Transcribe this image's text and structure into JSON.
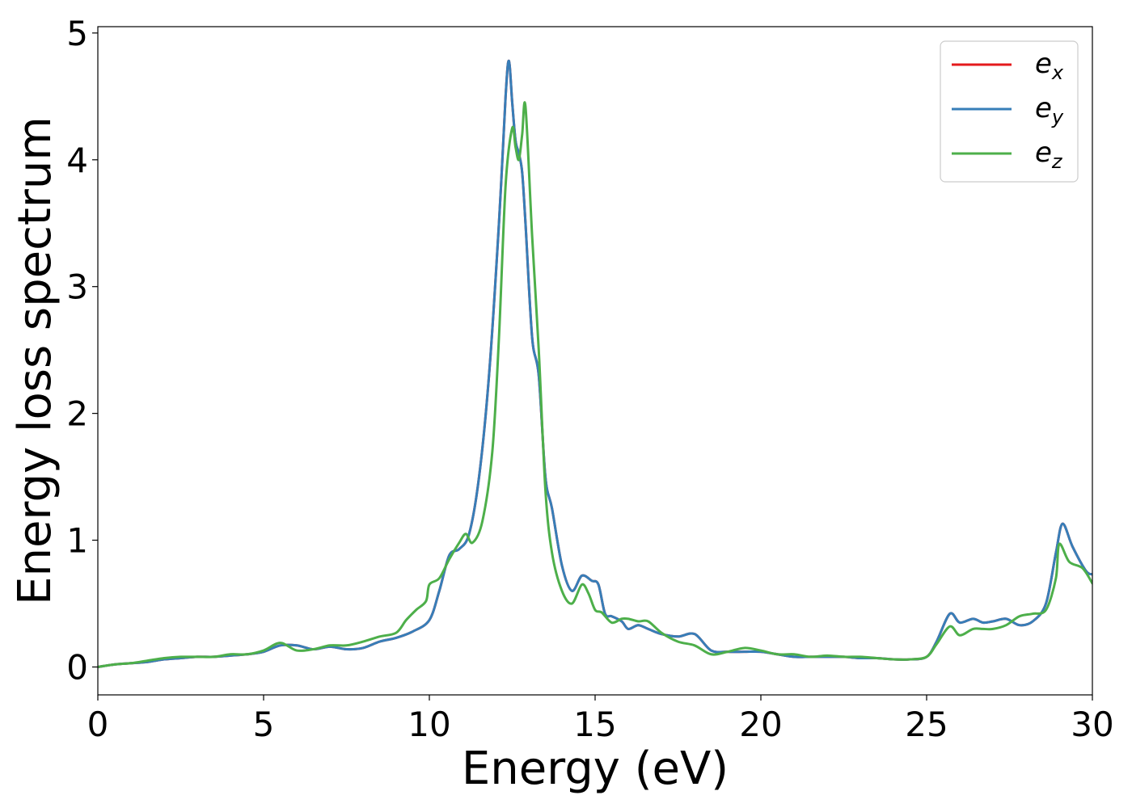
{
  "chart_data": {
    "type": "line",
    "title": "",
    "xlabel": "Energy (eV)",
    "ylabel": "Energy loss spectrum",
    "xlim": [
      0,
      30
    ],
    "ylim": [
      -0.22,
      5.05
    ],
    "xticks": [
      0,
      5,
      10,
      15,
      20,
      25,
      30
    ],
    "yticks": [
      0,
      1,
      2,
      3,
      4,
      5
    ],
    "grid": false,
    "legend_position": "top-right",
    "series": [
      {
        "name": "e_x",
        "legend_base": "e",
        "legend_sub": "x",
        "color": "#e41a1c",
        "x": [
          0,
          0.5,
          1,
          1.5,
          2,
          2.5,
          3,
          3.5,
          4,
          4.5,
          5,
          5.5,
          6,
          6.5,
          7,
          7.5,
          8,
          8.5,
          9,
          9.5,
          10,
          10.3,
          10.6,
          10.9,
          11.2,
          11.5,
          11.8,
          12.1,
          12.3,
          12.4,
          12.5,
          12.6,
          12.7,
          12.8,
          12.9,
          13.1,
          13.3,
          13.5,
          13.7,
          14,
          14.3,
          14.6,
          14.9,
          15.1,
          15.3,
          15.5,
          15.8,
          16,
          16.3,
          16.6,
          17,
          17.5,
          18,
          18.5,
          19,
          19.5,
          20,
          20.5,
          21,
          21.5,
          22,
          22.5,
          23,
          23.5,
          24,
          24.5,
          25,
          25.3,
          25.7,
          26,
          26.4,
          26.7,
          27,
          27.4,
          27.8,
          28.2,
          28.6,
          28.9,
          29.1,
          29.4,
          29.8,
          30
        ],
        "y": [
          0,
          0.02,
          0.03,
          0.04,
          0.06,
          0.07,
          0.08,
          0.08,
          0.09,
          0.1,
          0.12,
          0.17,
          0.17,
          0.14,
          0.16,
          0.14,
          0.15,
          0.2,
          0.23,
          0.28,
          0.37,
          0.6,
          0.88,
          0.93,
          1.05,
          1.5,
          2.3,
          3.5,
          4.5,
          4.78,
          4.45,
          4.15,
          4.05,
          3.9,
          3.5,
          2.6,
          2.3,
          1.5,
          1.25,
          0.8,
          0.6,
          0.72,
          0.68,
          0.65,
          0.42,
          0.4,
          0.36,
          0.3,
          0.33,
          0.3,
          0.26,
          0.24,
          0.26,
          0.13,
          0.12,
          0.12,
          0.12,
          0.1,
          0.08,
          0.08,
          0.08,
          0.08,
          0.07,
          0.07,
          0.06,
          0.06,
          0.08,
          0.2,
          0.42,
          0.35,
          0.38,
          0.35,
          0.36,
          0.38,
          0.33,
          0.36,
          0.5,
          0.9,
          1.13,
          0.95,
          0.76,
          0.73
        ]
      },
      {
        "name": "e_y",
        "legend_base": "e",
        "legend_sub": "y",
        "color": "#377eb8",
        "x": [
          0,
          0.5,
          1,
          1.5,
          2,
          2.5,
          3,
          3.5,
          4,
          4.5,
          5,
          5.5,
          6,
          6.5,
          7,
          7.5,
          8,
          8.5,
          9,
          9.5,
          10,
          10.3,
          10.6,
          10.9,
          11.2,
          11.5,
          11.8,
          12.1,
          12.3,
          12.4,
          12.5,
          12.6,
          12.7,
          12.8,
          12.9,
          13.1,
          13.3,
          13.5,
          13.7,
          14,
          14.3,
          14.6,
          14.9,
          15.1,
          15.3,
          15.5,
          15.8,
          16,
          16.3,
          16.6,
          17,
          17.5,
          18,
          18.5,
          19,
          19.5,
          20,
          20.5,
          21,
          21.5,
          22,
          22.5,
          23,
          23.5,
          24,
          24.5,
          25,
          25.3,
          25.7,
          26,
          26.4,
          26.7,
          27,
          27.4,
          27.8,
          28.2,
          28.6,
          28.9,
          29.1,
          29.4,
          29.8,
          30
        ],
        "y": [
          0,
          0.02,
          0.03,
          0.04,
          0.06,
          0.07,
          0.08,
          0.08,
          0.09,
          0.1,
          0.12,
          0.17,
          0.17,
          0.14,
          0.16,
          0.14,
          0.15,
          0.2,
          0.23,
          0.28,
          0.37,
          0.6,
          0.88,
          0.93,
          1.05,
          1.5,
          2.3,
          3.5,
          4.5,
          4.78,
          4.45,
          4.15,
          4.05,
          3.9,
          3.5,
          2.6,
          2.3,
          1.5,
          1.25,
          0.8,
          0.6,
          0.72,
          0.68,
          0.65,
          0.42,
          0.4,
          0.36,
          0.3,
          0.33,
          0.3,
          0.26,
          0.24,
          0.26,
          0.13,
          0.12,
          0.12,
          0.12,
          0.1,
          0.08,
          0.08,
          0.08,
          0.08,
          0.07,
          0.07,
          0.06,
          0.06,
          0.08,
          0.2,
          0.42,
          0.35,
          0.38,
          0.35,
          0.36,
          0.38,
          0.33,
          0.36,
          0.5,
          0.9,
          1.13,
          0.95,
          0.76,
          0.73
        ]
      },
      {
        "name": "e_z",
        "legend_base": "e",
        "legend_sub": "z",
        "color": "#4daf4a",
        "x": [
          0,
          0.5,
          1,
          1.5,
          2,
          2.5,
          3,
          3.5,
          4,
          4.5,
          5,
          5.5,
          6,
          6.5,
          7,
          7.5,
          8,
          8.5,
          9,
          9.3,
          9.6,
          9.9,
          10,
          10.3,
          10.6,
          10.9,
          11.1,
          11.3,
          11.6,
          11.9,
          12.1,
          12.3,
          12.5,
          12.6,
          12.7,
          12.8,
          12.9,
          13.1,
          13.3,
          13.5,
          13.7,
          14,
          14.3,
          14.6,
          14.8,
          15,
          15.2,
          15.5,
          15.8,
          16,
          16.3,
          16.6,
          17,
          17.5,
          18,
          18.5,
          19,
          19.5,
          20,
          20.5,
          21,
          21.5,
          22,
          22.5,
          23,
          23.5,
          24,
          24.5,
          25,
          25.3,
          25.7,
          26,
          26.4,
          26.7,
          27,
          27.4,
          27.8,
          28.2,
          28.6,
          28.9,
          29,
          29.3,
          29.7,
          30
        ],
        "y": [
          0,
          0.02,
          0.03,
          0.05,
          0.07,
          0.08,
          0.08,
          0.08,
          0.1,
          0.1,
          0.13,
          0.19,
          0.13,
          0.14,
          0.17,
          0.17,
          0.2,
          0.24,
          0.27,
          0.37,
          0.45,
          0.52,
          0.65,
          0.7,
          0.85,
          0.98,
          1.05,
          0.98,
          1.15,
          1.7,
          2.6,
          3.8,
          4.25,
          4.1,
          4.0,
          4.2,
          4.42,
          3.4,
          2.5,
          1.4,
          0.9,
          0.6,
          0.5,
          0.65,
          0.58,
          0.45,
          0.43,
          0.35,
          0.38,
          0.38,
          0.36,
          0.36,
          0.27,
          0.2,
          0.17,
          0.1,
          0.12,
          0.15,
          0.13,
          0.1,
          0.1,
          0.08,
          0.09,
          0.08,
          0.08,
          0.07,
          0.06,
          0.06,
          0.08,
          0.18,
          0.32,
          0.25,
          0.3,
          0.3,
          0.3,
          0.33,
          0.4,
          0.42,
          0.45,
          0.7,
          0.97,
          0.83,
          0.78,
          0.66
        ]
      }
    ]
  }
}
